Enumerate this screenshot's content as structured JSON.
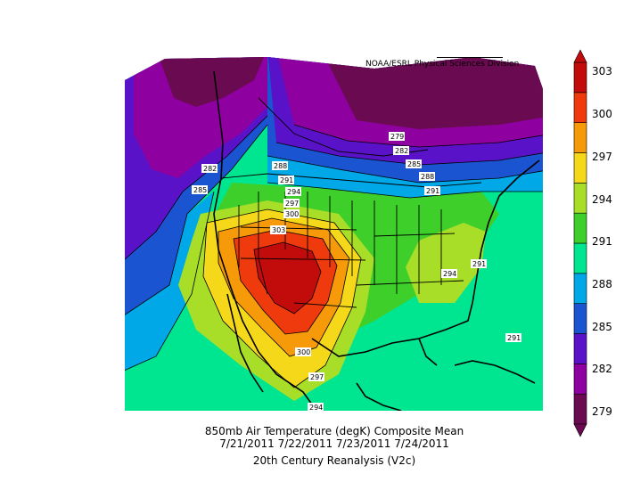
{
  "map": {
    "credit": "NOAA/ESRL Physical Sciences Division",
    "title_line1": "850mb Air Temperature (degK) Composite Mean",
    "title_line2": "7/21/2011 7/22/2011 7/23/2011 7/24/2011",
    "title_line3": "20th Century Reanalysis (V2c)",
    "contour_labels": [
      "279",
      "282",
      "285",
      "288",
      "291",
      "282",
      "285",
      "288",
      "291",
      "294",
      "297",
      "300",
      "303",
      "291",
      "294",
      "291",
      "300",
      "297",
      "294"
    ]
  },
  "colorbar": {
    "ticks": [
      "303",
      "300",
      "297",
      "294",
      "291",
      "288",
      "285",
      "282",
      "279"
    ],
    "colors": [
      "#6a0a50",
      "#8f00a0",
      "#5a12c8",
      "#1b54d0",
      "#00a8e8",
      "#00e690",
      "#3ecf2a",
      "#a8de28",
      "#f6d81a",
      "#f79a0a",
      "#ee3a0c",
      "#c20c0c"
    ]
  }
}
